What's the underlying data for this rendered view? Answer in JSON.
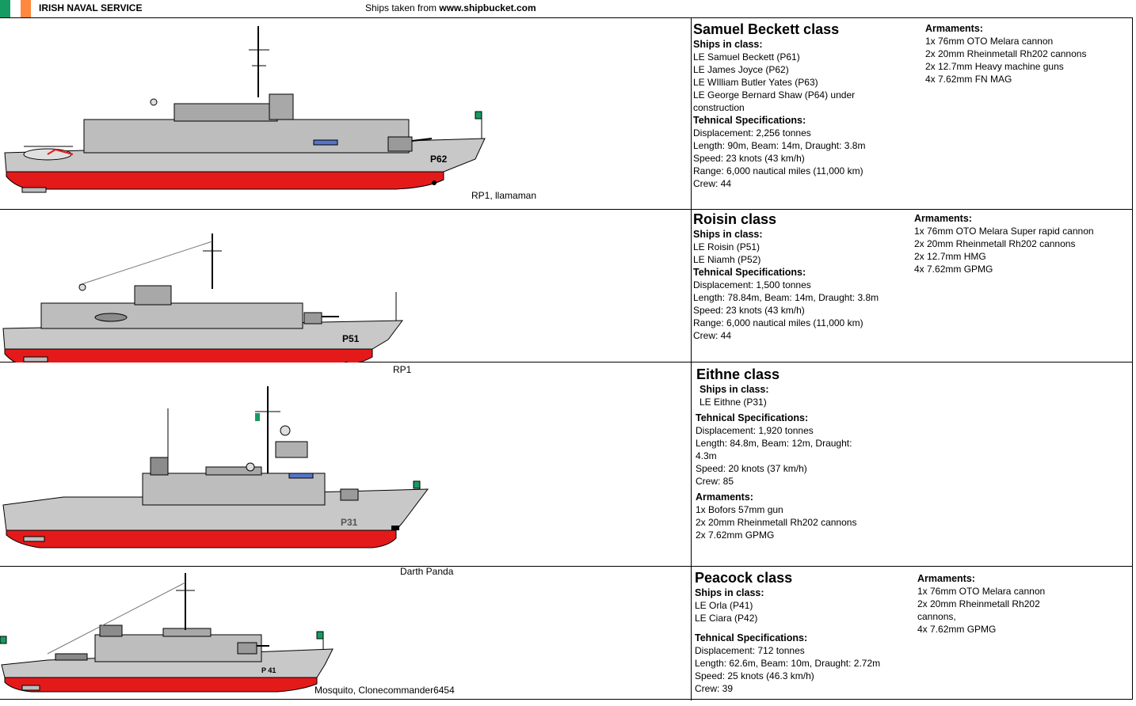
{
  "header": {
    "title": "IRISH NAVAL SERVICE",
    "credit_prefix": "Ships taken from ",
    "credit_site": "www.shipbucket.com",
    "flag_colors": [
      "#169b62",
      "#ffffff",
      "#ff883e"
    ]
  },
  "colors": {
    "hull_red": "#e41a1a",
    "hull_grey": "#c0c0c0",
    "deck_dark": "#8c8c8c",
    "green_flag": "#169b62"
  },
  "ships": [
    {
      "name": "Samuel Beckett class",
      "ships_label": "Ships in class:",
      "ships": [
        "LE Samuel Beckett (P61)",
        "LE James Joyce (P62)",
        "LE WIlliam Butler Yates (P63)",
        "LE George Bernard Shaw (P64) under construction"
      ],
      "spec_label": "Tehnical Specifications:",
      "specs": [
        "Displacement: 2,256 tonnes",
        "Length: 90m, Beam: 14m, Draught: 3.8m",
        "Speed: 23 knots (43 km/h)",
        "Range: 6,000 nautical miles (11,000 km)",
        "Crew: 44"
      ],
      "arm_label": "Armaments:",
      "arms": [
        "1x 76mm OTO Melara cannon",
        "2x 20mm Rheinmetall Rh202 cannons",
        "2x 12.7mm Heavy machine guns",
        "4x 7.62mm FN MAG"
      ],
      "credit": "RP1, llamaman",
      "pennant": "P62"
    },
    {
      "name": "Roisin class",
      "ships_label": "Ships in class:",
      "ships": [
        "LE Roisin (P51)",
        "LE Niamh (P52)"
      ],
      "spec_label": "Tehnical Specifications:",
      "specs": [
        "Displacement: 1,500 tonnes",
        "Length: 78.84m, Beam: 14m, Draught: 3.8m",
        "Speed: 23 knots (43 km/h)",
        "Range: 6,000 nautical miles (11,000 km)",
        "Crew: 44"
      ],
      "arm_label": "Armaments:",
      "arms": [
        "1x 76mm OTO Melara Super rapid cannon",
        "2x 20mm Rheinmetall Rh202 cannons",
        "2x 12.7mm HMG",
        "4x 7.62mm GPMG"
      ],
      "credit": "RP1",
      "pennant": "P51"
    },
    {
      "name": "Eithne class",
      "ships_label": "Ships in class:",
      "ships": [
        "LE Eithne (P31)"
      ],
      "spec_label": "Tehnical Specifications:",
      "specs": [
        "Displacement: 1,920 tonnes",
        "Length: 84.8m, Beam: 12m, Draught: 4.3m",
        "Speed: 20 knots (37 km/h)",
        "Crew: 85"
      ],
      "arm_label": "Armaments:",
      "arms": [
        "1x Bofors 57mm gun",
        "2x 20mm Rheinmetall Rh202 cannons",
        "2x 7.62mm GPMG"
      ],
      "credit": "Darth Panda",
      "pennant": "P31"
    },
    {
      "name": "Peacock class",
      "ships_label": "Ships in class:",
      "ships": [
        "LE Orla (P41)",
        "LE Ciara (P42)"
      ],
      "spec_label": "Tehnical Specifications:",
      "specs": [
        "Displacement: 712 tonnes",
        "Length: 62.6m, Beam: 10m, Draught: 2.72m",
        "Speed: 25 knots (46.3 km/h)",
        "Crew: 39"
      ],
      "arm_label": "Armaments:",
      "arms": [
        "1x 76mm OTO Melara cannon",
        "2x 20mm Rheinmetall Rh202 cannons,",
        "4x 7.62mm GPMG"
      ],
      "credit": "Mosquito, Clonecommander6454",
      "pennant": "P 41"
    }
  ]
}
